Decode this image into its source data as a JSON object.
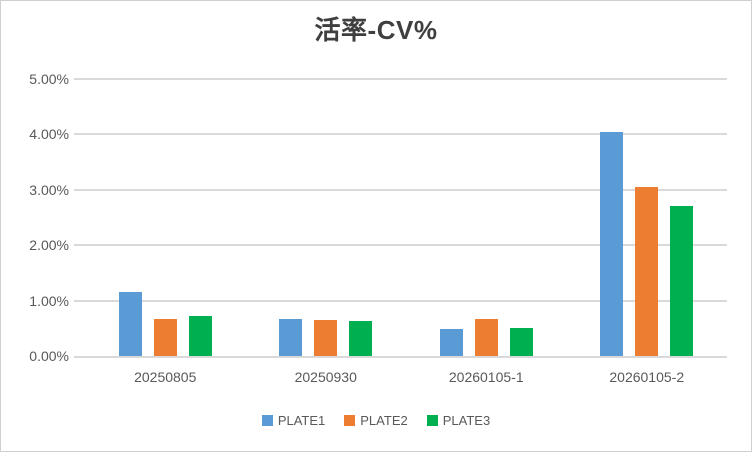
{
  "window": {
    "background": "#FFFFFF",
    "border_color": "#D0D0D0"
  },
  "title": {
    "full": "活率-CV%",
    "cjk": "活率",
    "latin": "-CV%"
  },
  "chart_data": {
    "type": "bar",
    "title": "活率-CV%",
    "categories": [
      "20250805",
      "20250930",
      "20260105-1",
      "20260105-2"
    ],
    "series": [
      {
        "name": "PLATE1",
        "color": "#5B9BD5",
        "values": [
          1.15,
          0.67,
          0.49,
          4.05
        ]
      },
      {
        "name": "PLATE2",
        "color": "#ED7D31",
        "values": [
          0.66,
          0.65,
          0.67,
          3.05
        ]
      },
      {
        "name": "PLATE3",
        "color": "#00B050",
        "values": [
          0.73,
          0.63,
          0.51,
          2.7
        ]
      }
    ],
    "y_axis": {
      "min": 0,
      "max": 5,
      "step": 1,
      "unit": "%",
      "tick_labels": [
        "0.00%",
        "1.00%",
        "2.00%",
        "3.00%",
        "4.00%",
        "5.00%"
      ]
    },
    "x_axis": {
      "tick_labels": [
        "20250805",
        "20250930",
        "20260105-1",
        "20260105-2"
      ]
    },
    "ylim": [
      0,
      5
    ],
    "grid": true,
    "legend_position": "bottom",
    "legend_entries": [
      "PLATE1",
      "PLATE2",
      "PLATE3"
    ]
  },
  "styles": {
    "axis_text_color": "#595959",
    "title_color": "#3F3F3F",
    "gridline_color": "#D9D9D9",
    "plate1_color": "#5B9BD5",
    "plate2_color": "#ED7D31",
    "plate3_color": "#00B050"
  }
}
